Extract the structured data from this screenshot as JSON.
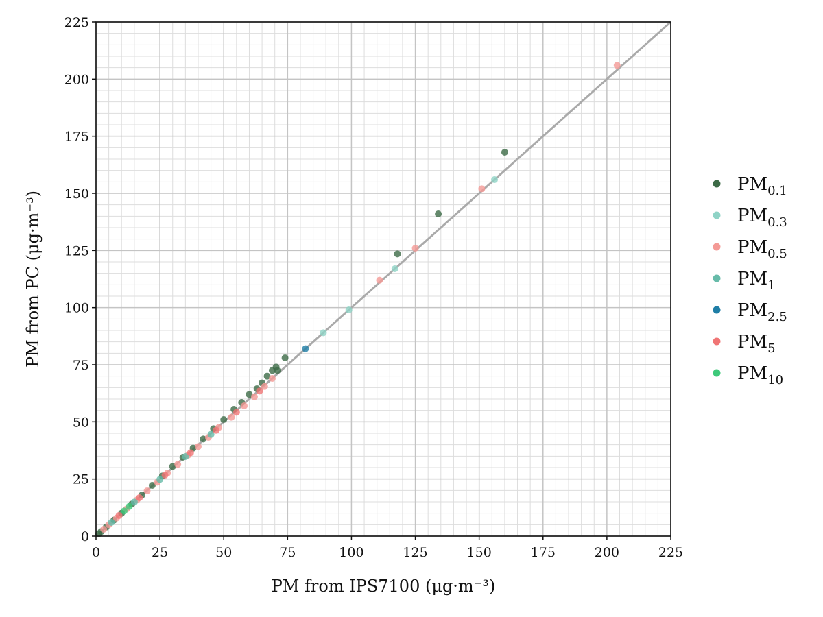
{
  "chart_data": {
    "type": "scatter",
    "title": "",
    "xlabel": "PM from IPS7100  (μg·m⁻³)",
    "ylabel": "PM from PC (μg·m⁻³)",
    "xlim": [
      0,
      225
    ],
    "ylim": [
      0,
      225
    ],
    "x_ticks": [
      0,
      25,
      50,
      75,
      100,
      125,
      150,
      175,
      200,
      225
    ],
    "y_ticks": [
      0,
      25,
      50,
      75,
      100,
      125,
      150,
      175,
      200,
      225
    ],
    "minor_tick_step": 5,
    "grid": true,
    "legend_position": "right",
    "reference_line": {
      "x": [
        0,
        225
      ],
      "y": [
        0,
        225
      ],
      "color": "#aaaaaa"
    },
    "series": [
      {
        "name": "PM0.1",
        "label_main": "PM",
        "label_sub": "0.1",
        "color": "#3d6b47",
        "points": [
          [
            74,
            78
          ],
          [
            118,
            123.5
          ],
          [
            134,
            141
          ],
          [
            160,
            168
          ],
          [
            70.5,
            74
          ],
          [
            69,
            72.5
          ],
          [
            71,
            72.5
          ],
          [
            67,
            70
          ],
          [
            65,
            67
          ],
          [
            63,
            64.5
          ],
          [
            60,
            62
          ],
          [
            57,
            58.5
          ],
          [
            54,
            55.5
          ],
          [
            50,
            51
          ],
          [
            46,
            47
          ],
          [
            42,
            42.5
          ],
          [
            38,
            38.5
          ],
          [
            34,
            34.5
          ],
          [
            30,
            30.5
          ],
          [
            26,
            26.3
          ],
          [
            22,
            22.2
          ],
          [
            18,
            18
          ],
          [
            14,
            14
          ],
          [
            10,
            10
          ],
          [
            7,
            7
          ],
          [
            4,
            4
          ],
          [
            2,
            2
          ],
          [
            1,
            1
          ]
        ]
      },
      {
        "name": "PM0.3",
        "label_main": "PM",
        "label_sub": "0.3",
        "color": "#8fd3c6",
        "points": [
          [
            89,
            89
          ],
          [
            99,
            99
          ],
          [
            117,
            117
          ],
          [
            156,
            156
          ]
        ]
      },
      {
        "name": "PM0.5",
        "label_main": "PM",
        "label_sub": "0.5",
        "color": "#f49a96",
        "points": [
          [
            111,
            112
          ],
          [
            125,
            126
          ],
          [
            151,
            152
          ],
          [
            204,
            206
          ],
          [
            69,
            69
          ],
          [
            66,
            65.5
          ],
          [
            62,
            61
          ],
          [
            58,
            57
          ],
          [
            53,
            52
          ],
          [
            48,
            47.5
          ],
          [
            44,
            43.2
          ],
          [
            40,
            39.2
          ],
          [
            36,
            35.4
          ],
          [
            32,
            31.4
          ],
          [
            28,
            27.6
          ],
          [
            24,
            23.6
          ],
          [
            20,
            19.8
          ],
          [
            16,
            15.8
          ],
          [
            12,
            11.9
          ],
          [
            8,
            7.9
          ],
          [
            5,
            5
          ],
          [
            3,
            3
          ]
        ]
      },
      {
        "name": "PM1",
        "label_main": "PM",
        "label_sub": "1",
        "color": "#67bba9",
        "points": [
          [
            45,
            44.5
          ],
          [
            35,
            34.8
          ],
          [
            25,
            24.8
          ],
          [
            15,
            14.9
          ],
          [
            6,
            6
          ]
        ]
      },
      {
        "name": "PM2.5",
        "label_main": "PM",
        "label_sub": "2.5",
        "color": "#1f7ea6",
        "points": [
          [
            82,
            82
          ]
        ]
      },
      {
        "name": "PM5",
        "label_main": "PM",
        "label_sub": "5",
        "color": "#f07575",
        "points": [
          [
            64,
            63.5
          ],
          [
            55,
            54.2
          ],
          [
            47,
            46.3
          ],
          [
            37,
            36.5
          ],
          [
            27,
            26.7
          ],
          [
            17,
            16.8
          ],
          [
            9,
            9
          ]
        ]
      },
      {
        "name": "PM10",
        "label_main": "PM",
        "label_sub": "10",
        "color": "#3ec97a",
        "points": [
          [
            13,
            13
          ],
          [
            11,
            11
          ]
        ]
      }
    ]
  }
}
